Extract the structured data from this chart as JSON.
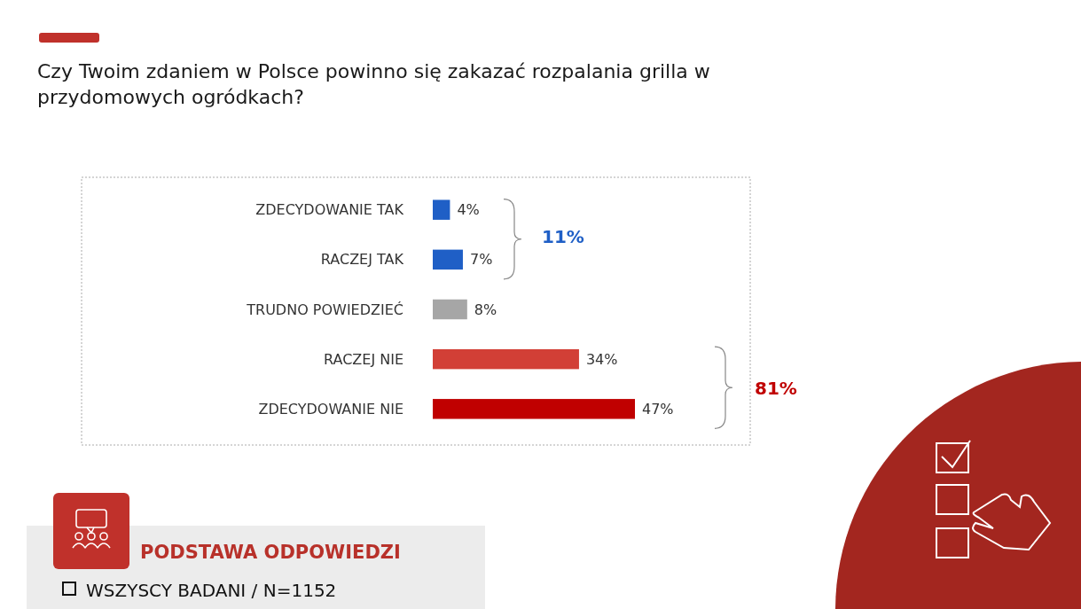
{
  "chart_data": {
    "type": "bar",
    "orientation": "horizontal",
    "title": "Czy Twoim zdaniem w Polsce powinno się zakazać rozpalania grilla w przydomowych ogródkach?",
    "categories": [
      "ZDECYDOWANIE TAK",
      "RACZEJ TAK",
      "TRUDNO POWIEDZIEĆ",
      "RACZEJ NIE",
      "ZDECYDOWANIE NIE"
    ],
    "values": [
      4,
      7,
      8,
      34,
      47
    ],
    "colors": [
      "#1f5fc6",
      "#1f5fc6",
      "#a6a6a6",
      "#d23f36",
      "#c00000"
    ],
    "value_labels": [
      "4%",
      "7%",
      "8%",
      "34%",
      "47%"
    ],
    "annotations": [
      "11%",
      "81%",
      "PODSTAWA ODPOWIEDZI",
      "WSZYSCY BADANI / N=1152"
    ]
  }
}
